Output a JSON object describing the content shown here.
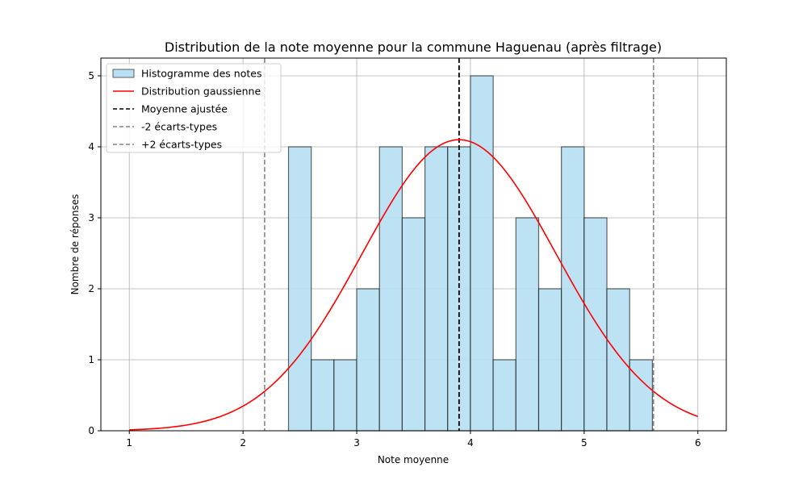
{
  "chart_data": {
    "type": "bar",
    "title": "Distribution de la note moyenne pour la commune Haguenau (après filtrage)",
    "xlabel": "Note moyenne",
    "ylabel": "Nombre de réponses",
    "xlim": [
      0.75,
      6.25
    ],
    "ylim": [
      0,
      5.25
    ],
    "xticks": [
      1,
      2,
      3,
      4,
      5,
      6
    ],
    "yticks": [
      0,
      1,
      2,
      3,
      4,
      5
    ],
    "grid": true,
    "legend_position": "top-left",
    "histogram": {
      "name": "Histogramme des notes",
      "bin_width": 0.2,
      "bins": [
        {
          "start": 2.4,
          "count": 4
        },
        {
          "start": 2.6,
          "count": 1
        },
        {
          "start": 2.8,
          "count": 1
        },
        {
          "start": 3.0,
          "count": 2
        },
        {
          "start": 3.2,
          "count": 4
        },
        {
          "start": 3.4,
          "count": 3
        },
        {
          "start": 3.6,
          "count": 4
        },
        {
          "start": 3.8,
          "count": 4
        },
        {
          "start": 4.0,
          "count": 5
        },
        {
          "start": 4.2,
          "count": 1
        },
        {
          "start": 4.4,
          "count": 3
        },
        {
          "start": 4.6,
          "count": 2
        },
        {
          "start": 4.8,
          "count": 4
        },
        {
          "start": 5.0,
          "count": 3
        },
        {
          "start": 5.2,
          "count": 2
        },
        {
          "start": 5.4,
          "count": 1
        }
      ],
      "fill_color": "#b8e0f2",
      "edge_color": "#000000"
    },
    "gaussian": {
      "name": "Distribution gaussienne",
      "mean": 3.9,
      "std": 0.855,
      "peak": 4.1,
      "x_range": [
        1,
        6
      ],
      "color": "#ff0000"
    },
    "vlines": [
      {
        "name": "Moyenne ajustée",
        "x": 3.9,
        "color": "#000000"
      },
      {
        "name": "-2 écarts-types",
        "x": 2.19,
        "color": "#808080"
      },
      {
        "name": "+2 écarts-types",
        "x": 5.61,
        "color": "#808080"
      }
    ]
  }
}
